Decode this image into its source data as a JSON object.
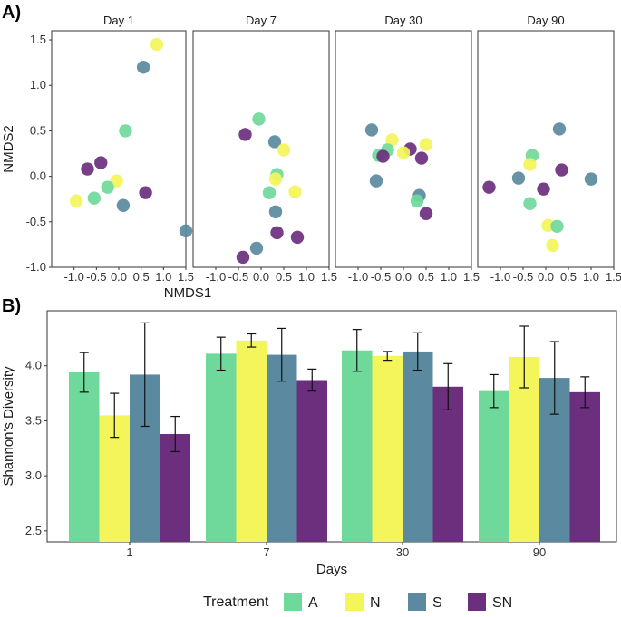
{
  "panel_labels": {
    "a": "A)",
    "b": "B)"
  },
  "colors": {
    "A": "#6fd99b",
    "N": "#f3f55a",
    "S": "#5b8aa0",
    "SN": "#6b2f7e"
  },
  "chart_data": [
    {
      "type": "scatter",
      "facets": [
        "Day 1",
        "Day 7",
        "Day 30",
        "Day 90"
      ],
      "xlabel": "NMDS1",
      "ylabel": "NMDS2",
      "xlim": [
        -1.5,
        1.5
      ],
      "ylim": [
        -1.0,
        1.6
      ],
      "xticks": [
        "-1.0",
        "-0.5",
        "0.0",
        "0.5",
        "1.0",
        "1.5"
      ],
      "xtick_values": [
        -1.0,
        -0.5,
        0.0,
        0.5,
        1.0,
        1.5
      ],
      "yticks": [
        "1.5",
        "1.0",
        "0.5",
        "0.0",
        "-0.5",
        "-1.0"
      ],
      "ytick_values": [
        1.5,
        1.0,
        0.5,
        0.0,
        -0.5,
        -1.0
      ],
      "grid": false,
      "points": [
        [
          {
            "g": "N",
            "x": 0.85,
            "y": 1.45
          },
          {
            "g": "S",
            "x": 0.55,
            "y": 1.2
          },
          {
            "g": "A",
            "x": 0.15,
            "y": 0.5
          },
          {
            "g": "SN",
            "x": -0.7,
            "y": 0.08
          },
          {
            "g": "SN",
            "x": -0.4,
            "y": 0.15
          },
          {
            "g": "N",
            "x": -0.05,
            "y": -0.05
          },
          {
            "g": "A",
            "x": -0.25,
            "y": -0.12
          },
          {
            "g": "A",
            "x": -0.55,
            "y": -0.24
          },
          {
            "g": "N",
            "x": -0.95,
            "y": -0.27
          },
          {
            "g": "S",
            "x": 0.1,
            "y": -0.32
          },
          {
            "g": "SN",
            "x": 0.6,
            "y": -0.18
          },
          {
            "g": "S",
            "x": 1.5,
            "y": -0.6
          }
        ],
        [
          {
            "g": "A",
            "x": -0.05,
            "y": 0.63
          },
          {
            "g": "SN",
            "x": -0.35,
            "y": 0.46
          },
          {
            "g": "S",
            "x": 0.3,
            "y": 0.38
          },
          {
            "g": "N",
            "x": 0.5,
            "y": 0.29
          },
          {
            "g": "A",
            "x": 0.35,
            "y": 0.02
          },
          {
            "g": "N",
            "x": 0.32,
            "y": -0.03
          },
          {
            "g": "A",
            "x": 0.18,
            "y": -0.18
          },
          {
            "g": "N",
            "x": 0.75,
            "y": -0.17
          },
          {
            "g": "S",
            "x": 0.32,
            "y": -0.39
          },
          {
            "g": "SN",
            "x": 0.35,
            "y": -0.62
          },
          {
            "g": "SN",
            "x": 0.8,
            "y": -0.67
          },
          {
            "g": "S",
            "x": -0.1,
            "y": -0.79
          },
          {
            "g": "SN",
            "x": -0.4,
            "y": -0.89
          }
        ],
        [
          {
            "g": "S",
            "x": -0.7,
            "y": 0.51
          },
          {
            "g": "N",
            "x": -0.25,
            "y": 0.4
          },
          {
            "g": "N",
            "x": 0.5,
            "y": 0.35
          },
          {
            "g": "A",
            "x": -0.35,
            "y": 0.29
          },
          {
            "g": "SN",
            "x": 0.15,
            "y": 0.3
          },
          {
            "g": "N",
            "x": 0.0,
            "y": 0.26
          },
          {
            "g": "A",
            "x": -0.55,
            "y": 0.23
          },
          {
            "g": "SN",
            "x": -0.45,
            "y": 0.22
          },
          {
            "g": "SN",
            "x": 0.4,
            "y": 0.2
          },
          {
            "g": "S",
            "x": -0.6,
            "y": -0.05
          },
          {
            "g": "S",
            "x": 0.35,
            "y": -0.21
          },
          {
            "g": "A",
            "x": 0.3,
            "y": -0.27
          },
          {
            "g": "SN",
            "x": 0.5,
            "y": -0.41
          }
        ],
        [
          {
            "g": "S",
            "x": 0.3,
            "y": 0.52
          },
          {
            "g": "A",
            "x": -0.3,
            "y": 0.23
          },
          {
            "g": "SN",
            "x": 0.35,
            "y": 0.07
          },
          {
            "g": "N",
            "x": -0.35,
            "y": 0.13
          },
          {
            "g": "S",
            "x": -0.6,
            "y": -0.02
          },
          {
            "g": "S",
            "x": 1.0,
            "y": -0.03
          },
          {
            "g": "SN",
            "x": -1.25,
            "y": -0.12
          },
          {
            "g": "SN",
            "x": -0.05,
            "y": -0.14
          },
          {
            "g": "A",
            "x": -0.35,
            "y": -0.3
          },
          {
            "g": "N",
            "x": 0.05,
            "y": -0.54
          },
          {
            "g": "A",
            "x": 0.25,
            "y": -0.55
          },
          {
            "g": "N",
            "x": 0.15,
            "y": -0.76
          }
        ]
      ]
    },
    {
      "type": "bar",
      "categories": [
        "1",
        "7",
        "30",
        "90"
      ],
      "xlabel": "Days",
      "ylabel": "Shannon's Diversity",
      "ylim": [
        2.4,
        4.5
      ],
      "yticks": [
        "2.5",
        "3.0",
        "3.5",
        "4.0"
      ],
      "ytick_values": [
        2.5,
        3.0,
        3.5,
        4.0
      ],
      "grid": false,
      "series": [
        {
          "name": "A",
          "values": [
            3.94,
            4.11,
            4.14,
            3.77
          ],
          "err": [
            0.18,
            0.15,
            0.19,
            0.15
          ]
        },
        {
          "name": "N",
          "values": [
            3.55,
            4.23,
            4.09,
            4.08
          ],
          "err": [
            0.2,
            0.06,
            0.04,
            0.28
          ]
        },
        {
          "name": "S",
          "values": [
            3.92,
            4.1,
            4.13,
            3.89
          ],
          "err": [
            0.47,
            0.24,
            0.17,
            0.33
          ]
        },
        {
          "name": "SN",
          "values": [
            3.38,
            3.87,
            3.81,
            3.76
          ],
          "err": [
            0.16,
            0.1,
            0.21,
            0.14
          ]
        }
      ]
    }
  ],
  "legend": {
    "title": "Treatment",
    "items": [
      {
        "key": "A",
        "label": "A"
      },
      {
        "key": "N",
        "label": "N"
      },
      {
        "key": "S",
        "label": "S"
      },
      {
        "key": "SN",
        "label": "SN"
      }
    ]
  }
}
